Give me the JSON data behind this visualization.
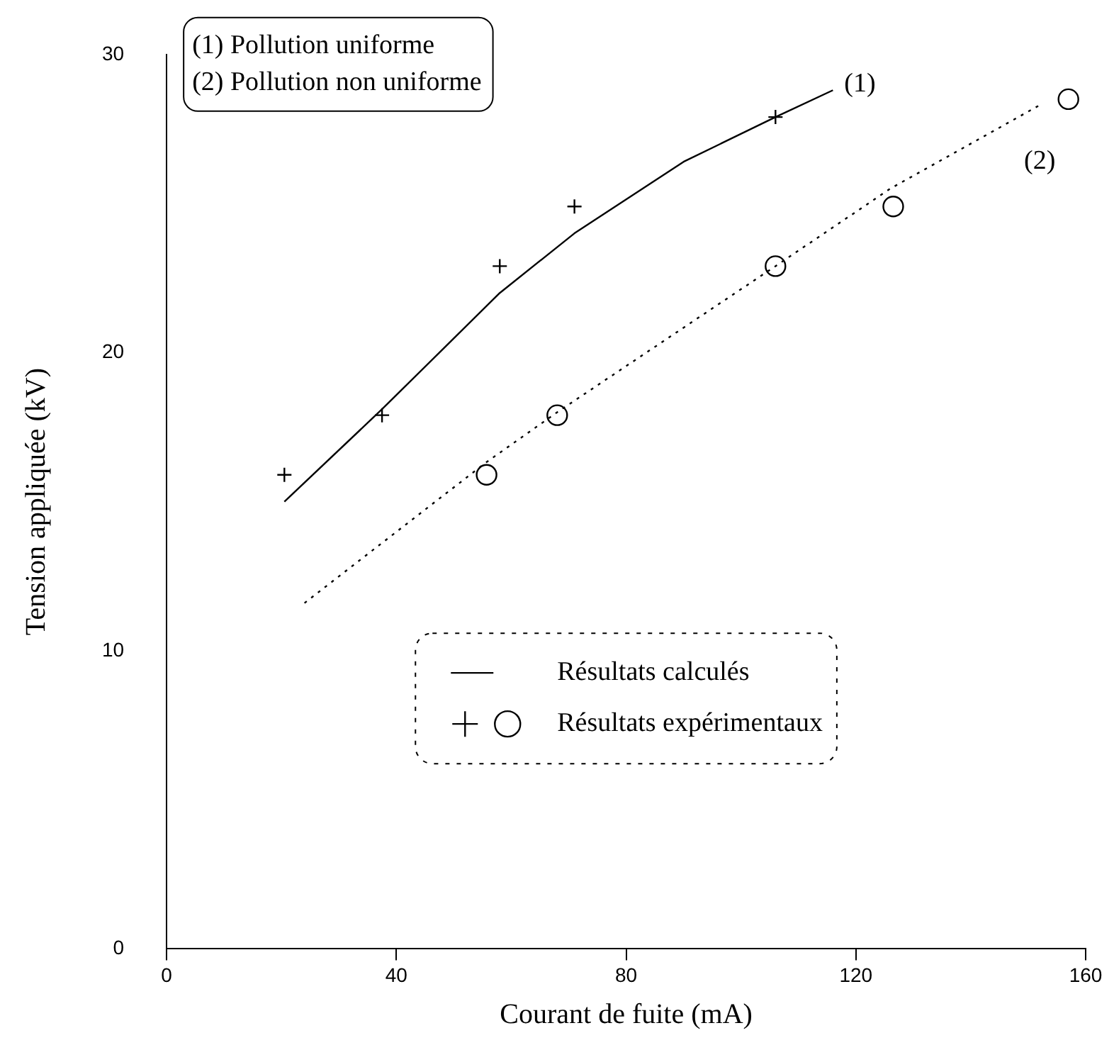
{
  "chart_data": {
    "type": "line",
    "xlabel": "Courant de fuite (mA)",
    "ylabel": "Tension appliquée (kV)",
    "xlim": [
      0,
      160
    ],
    "xticks": [
      0,
      40,
      80,
      120,
      160
    ],
    "ylim": [
      0,
      30
    ],
    "yticks": [
      0,
      10,
      20,
      30
    ],
    "grid": false,
    "legend": "bottom",
    "annotations": [
      "(1) Pollution uniforme",
      "(2) Pollution non uniforme",
      "(1)",
      "(2)"
    ],
    "series": [
      {
        "name": "Résultats calculés",
        "color": "#000000",
        "line_style": "solid",
        "marker": "none",
        "x": [
          20.5,
          37.5,
          58,
          71,
          90,
          106,
          116
        ],
        "values": [
          15.0,
          18.1,
          22.0,
          24.0,
          26.4,
          27.9,
          28.8
        ]
      },
      {
        "color": "#000000",
        "line_style": "dotted",
        "marker": "none",
        "x": [
          24,
          55.5,
          68,
          106,
          126,
          152
        ],
        "values": [
          11.6,
          16.3,
          18.0,
          22.9,
          25.5,
          28.3
        ]
      },
      {
        "type": "scatter",
        "color": "#000000",
        "marker": "cross",
        "x": [
          20.5,
          37.5,
          58,
          71,
          106
        ],
        "values": [
          15.9,
          17.9,
          22.9,
          24.9,
          27.9
        ]
      },
      {
        "name": "Résultats expérimentaux",
        "type": "scatter",
        "color": "#000000",
        "marker": "circle",
        "x": [
          55.7,
          68,
          106,
          126.5,
          157
        ],
        "values": [
          15.9,
          17.9,
          22.9,
          24.9,
          28.5
        ]
      }
    ]
  }
}
